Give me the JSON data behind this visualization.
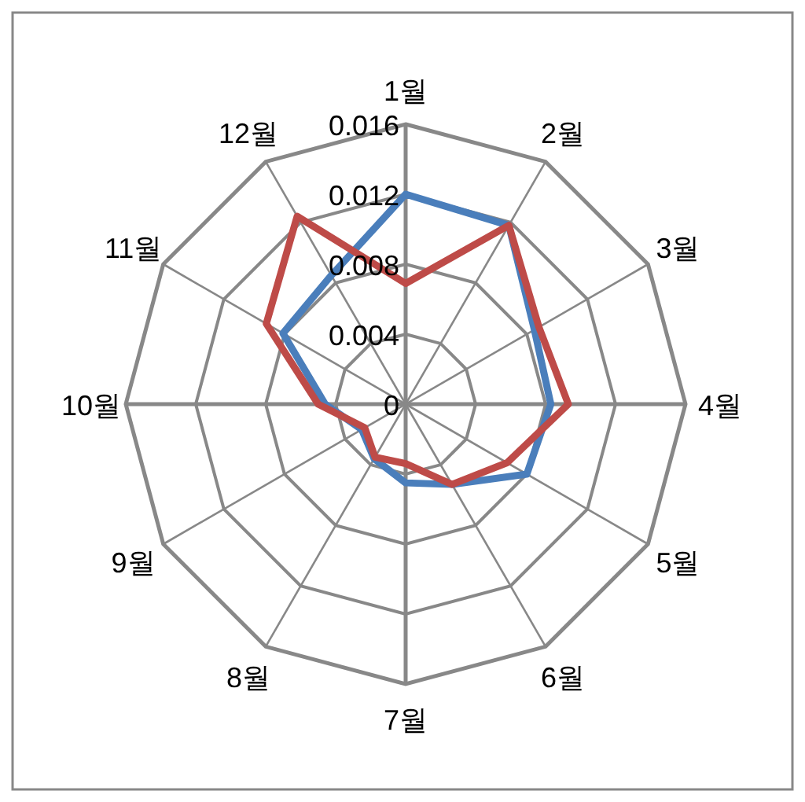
{
  "chart_data": {
    "type": "radar",
    "categories": [
      "1월",
      "2월",
      "3월",
      "4월",
      "5월",
      "6월",
      "7월",
      "8월",
      "9월",
      "10월",
      "11월",
      "12월"
    ],
    "series": [
      {
        "color": "#4a7ebb",
        "values": [
          0.012,
          0.0118,
          0.0085,
          0.0083,
          0.008,
          0.0053,
          0.0045,
          0.0036,
          0.0029,
          0.0046,
          0.0081,
          0.0085
        ]
      },
      {
        "color": "#be4b48",
        "values": [
          0.0069,
          0.0118,
          0.0088,
          0.0093,
          0.0067,
          0.0053,
          0.0034,
          0.0035,
          0.0027,
          0.005,
          0.0092,
          0.0124
        ]
      }
    ],
    "ylim": [
      0,
      0.016
    ],
    "yticks": [
      0,
      0.004,
      0.008,
      0.012,
      0.016
    ],
    "grid": true
  }
}
